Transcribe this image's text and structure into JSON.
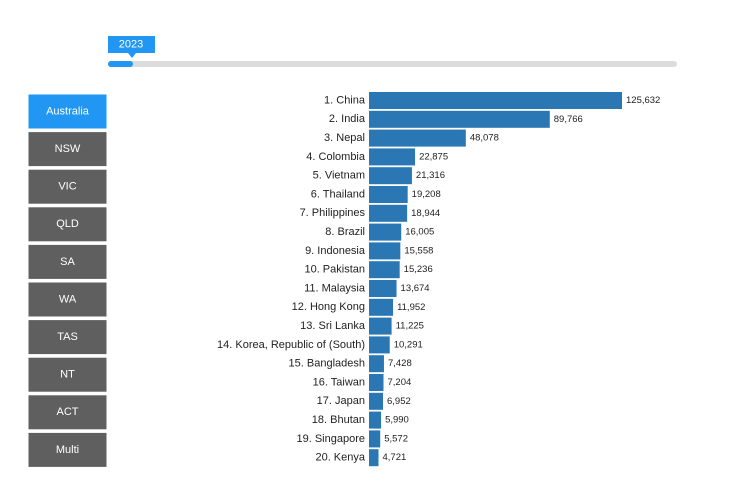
{
  "slider": {
    "label": "2023"
  },
  "tabs": [
    "Australia",
    "NSW",
    "VIC",
    "QLD",
    "SA",
    "WA",
    "TAS",
    "NT",
    "ACT",
    "Multi"
  ],
  "chart_data": {
    "type": "bar",
    "orientation": "horizontal",
    "color": "#2a77b4",
    "categories": [
      "1. China",
      "2. India",
      "3. Nepal",
      "4. Colombia",
      "5. Vietnam",
      "6. Thailand",
      "7. Philippines",
      "8. Brazil",
      "9. Indonesia",
      "10. Pakistan",
      "11. Malaysia",
      "12. Hong Kong",
      "13. Sri Lanka",
      "14. Korea, Republic of (South)",
      "15. Bangladesh",
      "16. Taiwan",
      "17. Japan",
      "18. Bhutan",
      "19. Singapore",
      "20. Kenya"
    ],
    "values": [
      125632,
      89766,
      48078,
      22875,
      21316,
      19208,
      18944,
      16005,
      15558,
      15236,
      13674,
      11952,
      11225,
      10291,
      7428,
      7204,
      6952,
      5990,
      5572,
      4721
    ],
    "value_labels": [
      "125,632",
      "89,766",
      "48,078",
      "22,875",
      "21,316",
      "19,208",
      "18,944",
      "16,005",
      "15,558",
      "15,236",
      "13,674",
      "11,952",
      "11,225",
      "10,291",
      "7,428",
      "7,204",
      "6,952",
      "5,990",
      "5,572",
      "4,721"
    ]
  }
}
